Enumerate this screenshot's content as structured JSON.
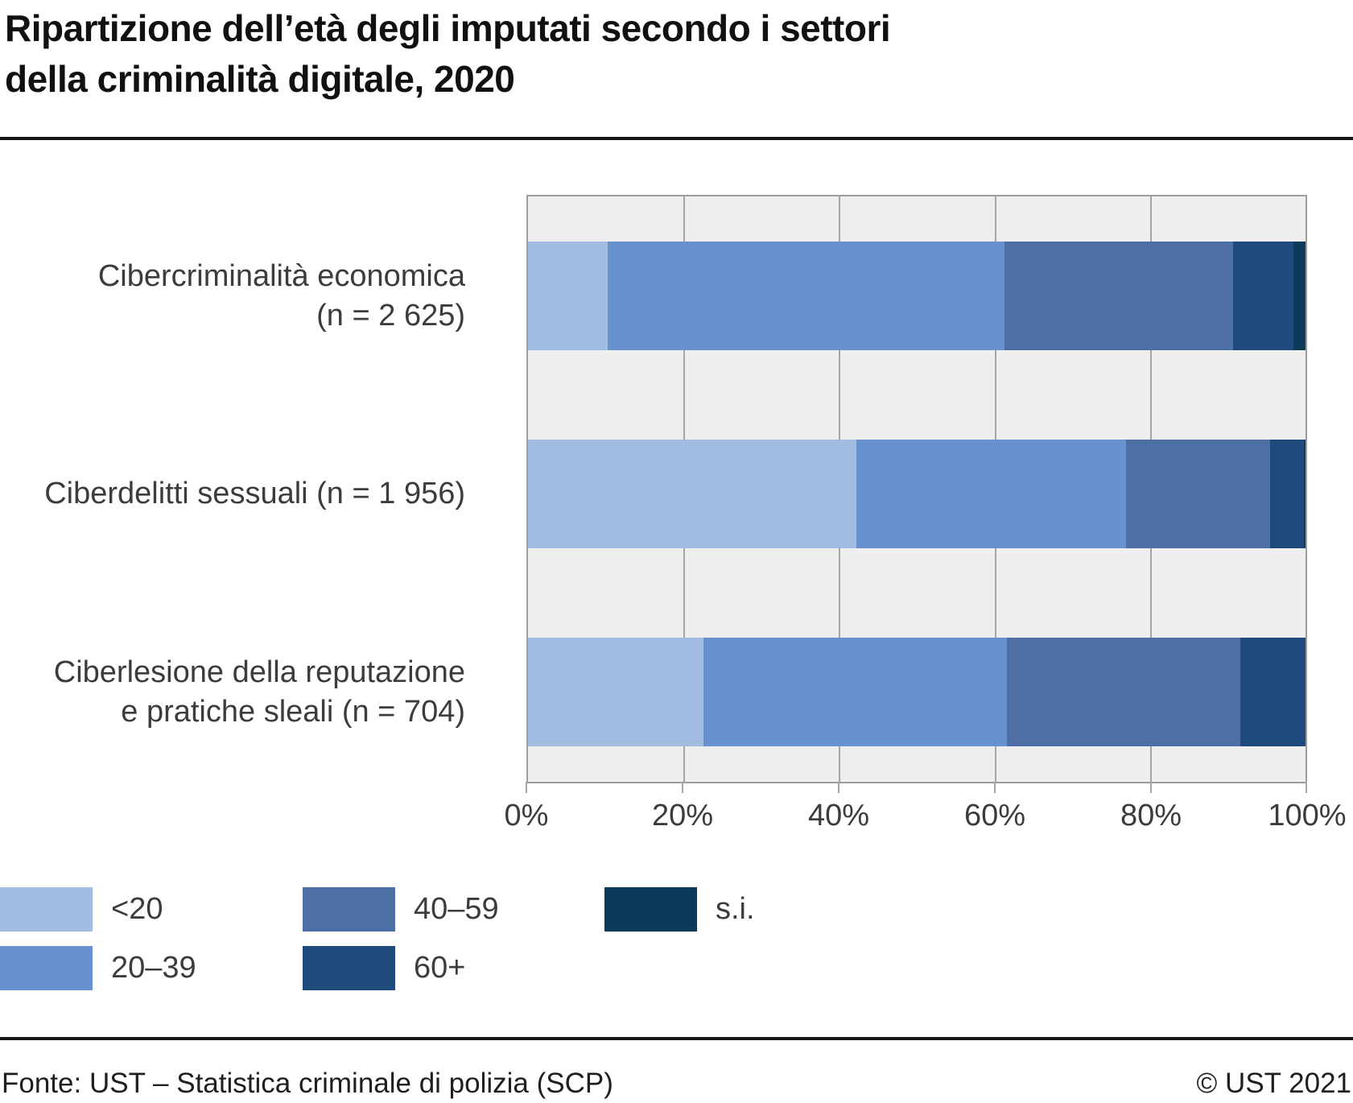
{
  "title": {
    "line1": "Ripartizione dell’età degli imputati secondo i settori",
    "line2": "della criminalità digitale, 2020"
  },
  "footer": {
    "source": "Fonte: UST – Statistica criminale di polizia (SCP)",
    "copyright": "© UST 2021"
  },
  "colors": {
    "plot_background": "#efefef",
    "gridline": "#a6a6a6",
    "plot_border": "#9d9d9d",
    "text": "#3c3c3c",
    "rule": "#161616"
  },
  "chart_data": {
    "type": "bar",
    "orientation": "horizontal",
    "stacked": true,
    "unit": "percent",
    "xlim": [
      0,
      100
    ],
    "x_ticks": [
      "0%",
      "20%",
      "40%",
      "60%",
      "80%",
      "100%"
    ],
    "grid": "vertical",
    "legend_position": "bottom",
    "legend": [
      {
        "label": "<20",
        "color": "#a3bce2"
      },
      {
        "label": "20–39",
        "color": "#6892ce"
      },
      {
        "label": "40–59",
        "color": "#4d6fa5"
      },
      {
        "label": "60+",
        "color": "#1f4a7d"
      },
      {
        "label": "s.i.",
        "color": "#0e3a5a"
      }
    ],
    "categories": [
      "Cibercriminalità economica (n = 2 625)",
      "Ciberdelitti sessuali (n = 1 956)",
      "Ciberlesione della reputazione e pratiche sleali (n = 704)"
    ],
    "category_labels": {
      "0": {
        "line1": "Cibercriminalità economica",
        "line2": "(n = 2 625)"
      },
      "1": {
        "line1": "Ciberdelitti sessuali (n = 1 956)",
        "line2": ""
      },
      "2": {
        "line1": "Ciberlesione della reputazione",
        "line2": "e pratiche sleali (n = 704)"
      }
    },
    "series": [
      {
        "name": "<20",
        "values": [
          10.3,
          42.2,
          22.6
        ]
      },
      {
        "name": "20–39",
        "values": [
          51.0,
          34.7,
          39.0
        ]
      },
      {
        "name": "40–59",
        "values": [
          29.4,
          18.5,
          30.0
        ]
      },
      {
        "name": "60+",
        "values": [
          7.8,
          4.4,
          8.4
        ]
      },
      {
        "name": "s.i.",
        "values": [
          1.5,
          0.2,
          0.0
        ]
      }
    ]
  }
}
